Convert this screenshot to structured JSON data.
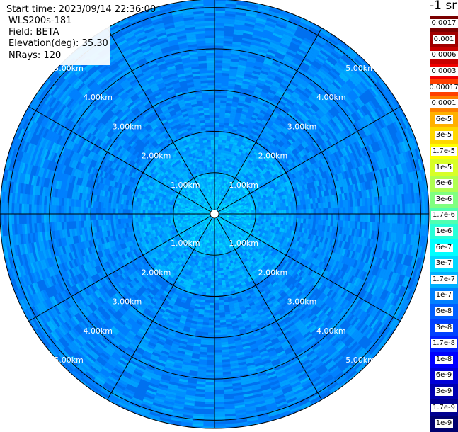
{
  "header": {
    "start_time": "Start time: 2023/09/14 22:36:00",
    "instrument": "WLS200s-181",
    "field": "Field: BETA",
    "elevation": "Elevation(deg): 35.30",
    "nrays": "NRays: 120"
  },
  "colorbar": {
    "units": "-1 sr",
    "labels": [
      "0.0017",
      "0.001",
      "0.0006",
      "0.0003",
      "0.00017",
      "0.0001",
      "6e-5",
      "3e-5",
      "1.7e-5",
      "1e-5",
      "6e-6",
      "3e-6",
      "1.7e-6",
      "1e-6",
      "6e-7",
      "3e-7",
      "1.7e-7",
      "1e-7",
      "6e-8",
      "3e-8",
      "1.7e-8",
      "1e-8",
      "6e-9",
      "3e-9",
      "1.7e-9",
      "1e-9"
    ],
    "colors": [
      "#7a0000",
      "#a00000",
      "#c80000",
      "#f00000",
      "#ff4000",
      "#ff8000",
      "#ffb000",
      "#ffd800",
      "#ffff00",
      "#d8ff28",
      "#b0ff50",
      "#80ff80",
      "#50ffb0",
      "#28ffd8",
      "#00ffff",
      "#00d8ff",
      "#00b0ff",
      "#0080ff",
      "#0060ff",
      "#0040ff",
      "#0020ff",
      "#0000ff",
      "#0000d8",
      "#0000b0",
      "#000090",
      "#000070"
    ]
  },
  "chart_data": {
    "type": "heatmap",
    "projection": "polar (PPI scan)",
    "field": "BETA",
    "range_rings_km": [
      1,
      2,
      3,
      4,
      5
    ],
    "range_labels": [
      "1.00km",
      "2.00km",
      "3.00km",
      "4.00km",
      "5.00km"
    ],
    "max_range_km": 5.2,
    "n_rays": 120,
    "radial_lines_deg": [
      0,
      30,
      60,
      90,
      120,
      150,
      180,
      210,
      240,
      270,
      300,
      330
    ],
    "scale": "log",
    "value_range": [
      1e-09,
      0.0017
    ],
    "typical_values": {
      "near_center": "1.7e-7 to 1e-7",
      "1-2 km": "1e-7 to 6e-8",
      "beyond 2 km": "6e-8 to 3e-8"
    }
  }
}
